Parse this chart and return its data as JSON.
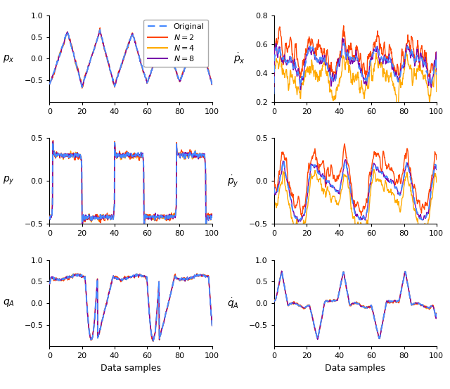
{
  "colors": {
    "original": "#4488FF",
    "N2": "#FF4400",
    "N4": "#FFAA00",
    "N8": "#7700AA"
  },
  "legend_labels_tex": [
    "Original",
    "$\\mathit{N}=2$",
    "$\\mathit{N}=4$",
    "$\\mathit{N}=8$"
  ],
  "xlabel": "Data samples",
  "n_points": 500
}
